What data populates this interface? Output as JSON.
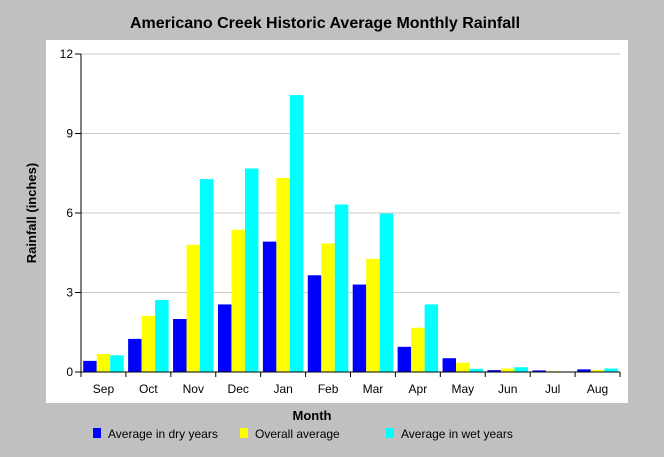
{
  "chart_data": {
    "type": "bar",
    "title": "Americano Creek Historic Average Monthly Rainfall",
    "xlabel": "Month",
    "ylabel": "Rainfall (inches)",
    "ylim": [
      0,
      12
    ],
    "yticks": [
      0,
      3,
      6,
      9,
      12
    ],
    "grid": true,
    "legend_position": "bottom",
    "categories": [
      "Sep",
      "Oct",
      "Nov",
      "Dec",
      "Jan",
      "Feb",
      "Mar",
      "Apr",
      "May",
      "Jun",
      "Jul",
      "Aug"
    ],
    "series": [
      {
        "name": "Average in dry years",
        "color": "#0000ff",
        "values": [
          0.42,
          1.25,
          2.0,
          2.55,
          4.92,
          3.65,
          3.3,
          0.95,
          0.52,
          0.07,
          0.06,
          0.1
        ]
      },
      {
        "name": "Overall average",
        "color": "#ffff00",
        "values": [
          0.68,
          2.12,
          4.8,
          5.37,
          7.32,
          4.85,
          4.27,
          1.67,
          0.35,
          0.13,
          0.03,
          0.08
        ]
      },
      {
        "name": "Average in wet years",
        "color": "#00ffff",
        "values": [
          0.63,
          2.72,
          7.28,
          7.68,
          10.45,
          6.32,
          5.98,
          2.55,
          0.12,
          0.18,
          0.02,
          0.13
        ]
      }
    ]
  }
}
